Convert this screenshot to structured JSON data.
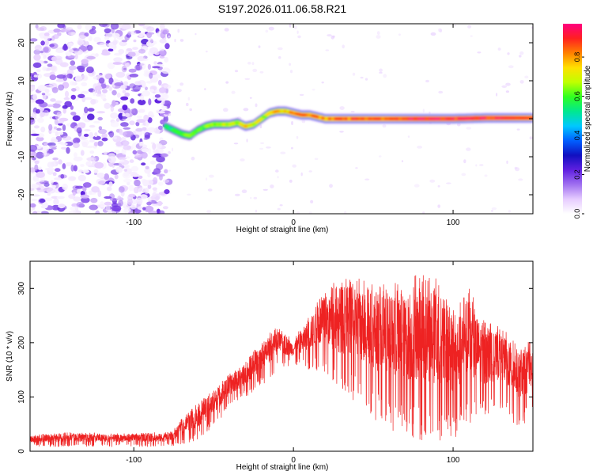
{
  "title": "S197.2026.011.06.58.R21",
  "chart_data": [
    {
      "type": "heatmap",
      "xlabel": "Height of straight line (km)",
      "ylabel": "Frequency (Hz)",
      "xlim": [
        -165,
        150
      ],
      "ylim": [
        -25,
        25
      ],
      "xticks": [
        "-100",
        "0",
        "100"
      ],
      "yticks": [
        "20",
        "10",
        "0",
        "-10",
        "-20"
      ],
      "xtick_values": [
        -100,
        0,
        100
      ],
      "ytick_values": [
        20,
        10,
        0,
        -10,
        -20
      ],
      "colorbar": {
        "label": "Normalized spectral amplitude",
        "range": [
          0,
          0.97
        ],
        "ticks": [
          "0.0",
          "0.2",
          "0.4",
          "0.6",
          "0.8"
        ],
        "tick_values": [
          0.0,
          0.2,
          0.4,
          0.6,
          0.8
        ],
        "colors": [
          "#ffffff",
          "#e6ccff",
          "#a070f0",
          "#6020e0",
          "#1010c0",
          "#0060ff",
          "#00c8ff",
          "#00e890",
          "#30ff20",
          "#c0ff00",
          "#ffe000",
          "#ff8000",
          "#ff2020",
          "#ff0080"
        ]
      },
      "noise_region_x": [
        -165,
        -80
      ],
      "ridge": {
        "x": [
          -80,
          -75,
          -70,
          -65,
          -60,
          -55,
          -50,
          -45,
          -40,
          -35,
          -30,
          -25,
          -20,
          -15,
          -10,
          -5,
          0,
          5,
          10,
          15,
          20,
          30,
          40,
          60,
          80,
          100,
          120,
          150
        ],
        "freq": [
          -2,
          -3,
          -4,
          -4.5,
          -3,
          -2,
          -1.5,
          -1.5,
          -1.5,
          -1,
          -2,
          -1.5,
          0,
          1.5,
          2,
          2,
          1.5,
          1,
          1,
          0.5,
          0,
          0,
          0,
          0,
          0,
          0,
          0.2,
          0.2
        ],
        "amplitude": [
          0.55,
          0.6,
          0.6,
          0.65,
          0.6,
          0.65,
          0.7,
          0.7,
          0.75,
          0.7,
          0.8,
          0.75,
          0.7,
          0.75,
          0.8,
          0.8,
          0.85,
          0.85,
          0.85,
          0.85,
          0.85,
          0.9,
          0.9,
          0.9,
          0.95,
          0.95,
          0.95,
          0.9
        ]
      }
    },
    {
      "type": "line",
      "xlabel": "Height of straight line (km)",
      "ylabel": "SNR (10 * v/v)",
      "xlim": [
        -165,
        150
      ],
      "ylim": [
        0,
        350
      ],
      "xticks": [
        "-100",
        "0",
        "100"
      ],
      "yticks": [
        "300",
        "200",
        "100",
        "0"
      ],
      "xtick_values": [
        -100,
        0,
        100
      ],
      "ytick_values": [
        300,
        200,
        100,
        0
      ],
      "color": "#ee2222",
      "envelope": {
        "x": [
          -165,
          -140,
          -110,
          -90,
          -80,
          -75,
          -70,
          -60,
          -50,
          -40,
          -30,
          -20,
          -10,
          0,
          10,
          20,
          25,
          30,
          40,
          50,
          60,
          70,
          80,
          90,
          100,
          110,
          120,
          130,
          140,
          150
        ],
        "upper": [
          30,
          35,
          33,
          35,
          35,
          40,
          60,
          90,
          115,
          145,
          165,
          205,
          230,
          205,
          255,
          300,
          310,
          330,
          325,
          320,
          310,
          315,
          330,
          320,
          260,
          300,
          240,
          230,
          205,
          200
        ],
        "lower": [
          8,
          8,
          8,
          8,
          8,
          10,
          12,
          20,
          45,
          80,
          100,
          120,
          150,
          160,
          150,
          140,
          120,
          100,
          90,
          60,
          40,
          30,
          20,
          20,
          20,
          50,
          60,
          80,
          40,
          60
        ]
      }
    }
  ]
}
